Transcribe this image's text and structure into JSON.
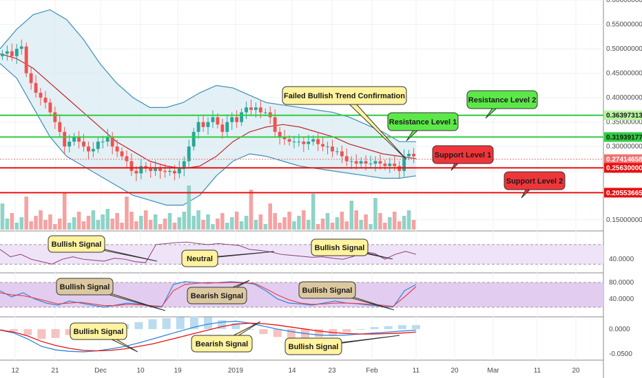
{
  "chart_data": [
    {
      "type": "candlestick",
      "panel": "price",
      "ylim": [
        0.13,
        0.6
      ],
      "yticks": [
        "0.15000000",
        "0.20000000",
        "0.25000000",
        "0.30000000",
        "0.35000000",
        "0.40000000",
        "0.45000000",
        "0.50000000",
        "0.55000000",
        "0.60000000"
      ],
      "ytick_values": [
        0.15,
        0.2,
        0.25,
        0.3,
        0.35,
        0.4,
        0.45,
        0.5,
        0.55,
        0.6
      ],
      "x_labels": [
        "12",
        "21",
        "Dec",
        "10",
        "19",
        "2019",
        "14",
        "23",
        "Feb",
        "11",
        "20",
        "Mar",
        "11",
        "20"
      ],
      "close": [
        0.49,
        0.495,
        0.485,
        0.5,
        0.505,
        0.45,
        0.43,
        0.41,
        0.4,
        0.39,
        0.37,
        0.35,
        0.33,
        0.3,
        0.31,
        0.32,
        0.31,
        0.3,
        0.29,
        0.295,
        0.31,
        0.31,
        0.32,
        0.3,
        0.29,
        0.28,
        0.27,
        0.25,
        0.245,
        0.26,
        0.255,
        0.25,
        0.255,
        0.25,
        0.248,
        0.25,
        0.245,
        0.255,
        0.27,
        0.3,
        0.33,
        0.35,
        0.34,
        0.35,
        0.36,
        0.345,
        0.33,
        0.35,
        0.36,
        0.35,
        0.37,
        0.38,
        0.375,
        0.38,
        0.37,
        0.37,
        0.36,
        0.33,
        0.32,
        0.315,
        0.31,
        0.31,
        0.31,
        0.305,
        0.31,
        0.315,
        0.305,
        0.3,
        0.3,
        0.29,
        0.29,
        0.28,
        0.27,
        0.27,
        0.265,
        0.27,
        0.265,
        0.265,
        0.27,
        0.265,
        0.26,
        0.265,
        0.26,
        0.25,
        0.28,
        0.285,
        0.28
      ],
      "bollinger_upper": [
        0.5,
        0.54,
        0.57,
        0.58,
        0.56,
        0.52,
        0.47,
        0.43,
        0.4,
        0.38,
        0.38,
        0.39,
        0.41,
        0.425,
        0.42,
        0.405,
        0.39,
        0.385,
        0.38,
        0.375,
        0.37,
        0.36,
        0.345,
        0.33,
        0.31,
        0.31
      ],
      "bollinger_lower": [
        0.47,
        0.44,
        0.38,
        0.32,
        0.28,
        0.26,
        0.24,
        0.22,
        0.2,
        0.19,
        0.18,
        0.18,
        0.2,
        0.24,
        0.27,
        0.285,
        0.28,
        0.27,
        0.26,
        0.255,
        0.25,
        0.245,
        0.24,
        0.235,
        0.235,
        0.24
      ],
      "ma_line": [
        0.49,
        0.48,
        0.46,
        0.43,
        0.4,
        0.37,
        0.34,
        0.31,
        0.29,
        0.27,
        0.26,
        0.255,
        0.26,
        0.28,
        0.31,
        0.33,
        0.34,
        0.345,
        0.34,
        0.33,
        0.32,
        0.305,
        0.295,
        0.285,
        0.28,
        0.275
      ],
      "horizontal_levels": [
        {
          "name": "Resistance Level 2",
          "value": 0.36397313,
          "color": "#2ecc40"
        },
        {
          "name": "Resistance Level 1",
          "value": 0.31939177,
          "color": "#2ecc40"
        },
        {
          "name": "Support Level 1",
          "value": 0.2563,
          "color": "#e8100f"
        },
        {
          "name": "Support Level 2",
          "value": 0.20553665,
          "color": "#e8100f"
        }
      ],
      "price_labels": [
        {
          "text": "0.36397313",
          "value": 0.36397313,
          "bg": "#b7f59f",
          "fg": "#1a1a1a"
        },
        {
          "text": "0.31939177",
          "value": 0.31939177,
          "bg": "#2ecc40",
          "fg": "#1a1a1a"
        },
        {
          "text": "0.27414658",
          "value": 0.27414658,
          "bg": "#f07070",
          "fg": "#ffffff"
        },
        {
          "text": "0.25630000",
          "value": 0.2563,
          "bg": "#e8100f",
          "fg": "#ffffff"
        },
        {
          "text": "0.20553665",
          "value": 0.20553665,
          "bg": "#e8100f",
          "fg": "#ffffff"
        }
      ]
    },
    {
      "type": "line",
      "panel": "rsi",
      "yticks": [
        "40.0000"
      ],
      "ytick_values": [
        40
      ],
      "ylim": [
        15,
        95
      ],
      "bands": [
        30,
        70
      ],
      "values": [
        60,
        45,
        50,
        40,
        35,
        30,
        40,
        45,
        40,
        38,
        36,
        42,
        40,
        35,
        33,
        70,
        72,
        74,
        75,
        72,
        70,
        72,
        70,
        68,
        60,
        58,
        55,
        50,
        48,
        46,
        44,
        45,
        42,
        40,
        46,
        55,
        52,
        40,
        50,
        56,
        50
      ],
      "color": "#8a3a7a"
    },
    {
      "type": "line",
      "panel": "stochastic",
      "yticks": [
        "80.0000",
        "40.0000"
      ],
      "ytick_values": [
        80,
        40
      ],
      "ylim": [
        0,
        100
      ],
      "bands": [
        20,
        80
      ],
      "series": [
        {
          "values": [
            60,
            45,
            55,
            40,
            30,
            25,
            35,
            30,
            25,
            20,
            25,
            30,
            28,
            22,
            20,
            75,
            82,
            80,
            78,
            80,
            82,
            80,
            76,
            60,
            40,
            30,
            28,
            25,
            30,
            35,
            30,
            28,
            25,
            22,
            20,
            60,
            75
          ],
          "color": "#2e86de"
        },
        {
          "values": [
            55,
            50,
            48,
            42,
            35,
            28,
            30,
            32,
            28,
            24,
            24,
            27,
            26,
            24,
            22,
            60,
            75,
            78,
            80,
            79,
            80,
            79,
            78,
            65,
            50,
            38,
            30,
            27,
            28,
            30,
            30,
            29,
            27,
            25,
            22,
            45,
            70
          ],
          "color": "#e8424a"
        }
      ]
    },
    {
      "type": "macd",
      "panel": "macd",
      "yticks": [
        "0.0000",
        "-0.0500"
      ],
      "ytick_values": [
        0,
        -0.05
      ],
      "ylim": [
        -0.06,
        0.022
      ],
      "macd": [
        -0.002,
        -0.008,
        -0.02,
        -0.035,
        -0.042,
        -0.045,
        -0.046,
        -0.044,
        -0.04,
        -0.035,
        -0.028,
        -0.02,
        -0.012,
        -0.004,
        0.004,
        0.01,
        0.014,
        0.016,
        0.012,
        0.006,
        0.0,
        -0.005,
        -0.009,
        -0.012,
        -0.013,
        -0.012,
        -0.01,
        -0.008,
        -0.006,
        -0.004,
        -0.002
      ],
      "signal": [
        -0.002,
        -0.006,
        -0.014,
        -0.025,
        -0.033,
        -0.039,
        -0.043,
        -0.044,
        -0.043,
        -0.04,
        -0.035,
        -0.03,
        -0.023,
        -0.016,
        -0.009,
        -0.002,
        0.005,
        0.01,
        0.012,
        0.011,
        0.008,
        0.004,
        0.0,
        -0.004,
        -0.007,
        -0.009,
        -0.01,
        -0.01,
        -0.009,
        -0.008,
        -0.006
      ],
      "macd_color": "#2e86de",
      "signal_color": "#e8100f"
    }
  ],
  "annotations": [
    {
      "text": "Failed Bullish Trend Confirmation",
      "panel": "price",
      "kind": "yellow"
    },
    {
      "text": "Resistance Level 2",
      "panel": "price",
      "kind": "green"
    },
    {
      "text": "Resistance Level 1",
      "panel": "price",
      "kind": "green"
    },
    {
      "text": "Support Level 1",
      "panel": "price",
      "kind": "red"
    },
    {
      "text": "Support Level 2",
      "panel": "price",
      "kind": "red"
    },
    {
      "text": "Bullish Signal",
      "panel": "rsi",
      "kind": "yellow"
    },
    {
      "text": "Neutral",
      "panel": "rsi",
      "kind": "yellow"
    },
    {
      "text": "Bullish Signal",
      "panel": "rsi",
      "kind": "yellow"
    },
    {
      "text": "Bullish Signal",
      "panel": "stochastic",
      "kind": "tan"
    },
    {
      "text": "Bearish Signal",
      "panel": "stochastic",
      "kind": "tan"
    },
    {
      "text": "Bullish Signal",
      "panel": "stochastic",
      "kind": "tan"
    },
    {
      "text": "Bullish Signal",
      "panel": "macd",
      "kind": "yellow"
    },
    {
      "text": "Bearish Signal",
      "panel": "macd",
      "kind": "yellow"
    },
    {
      "text": "Bullish Signal",
      "panel": "macd",
      "kind": "yellow"
    }
  ],
  "colors": {
    "up": "#26a69a",
    "down": "#ef5350",
    "bollinger": "#3a8fb7",
    "bollinger_fill": "#dcecf2",
    "ma": "#c0262d",
    "rsi_band": "#efe3f8",
    "stoch_band": "#e2cdf0",
    "yellow_callout": "#fff3a0",
    "tan_callout": "#dcc8a0",
    "green_callout": "#5de84a",
    "red_callout": "#f0353a"
  }
}
